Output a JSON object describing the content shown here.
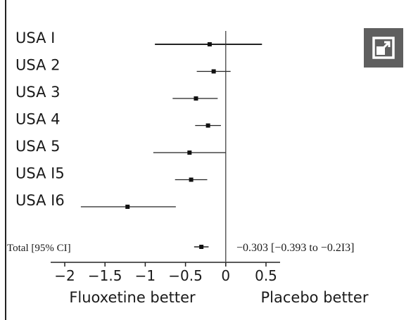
{
  "chart_data": {
    "type": "forest",
    "title": "",
    "xlabel_left": "Fluoxetine better",
    "xlabel_right": "Placebo better",
    "xlim": [
      -2,
      0.5
    ],
    "xticks": [
      -2,
      -1.5,
      -1,
      -0.5,
      0,
      0.5
    ],
    "xtick_labels": [
      "−2",
      "−1.5",
      "−1",
      "−0.5",
      "0",
      "0.5"
    ],
    "studies": [
      {
        "name": "USA I",
        "estimate": -0.2,
        "lower": -0.88,
        "upper": 0.45
      },
      {
        "name": "USA 2",
        "estimate": -0.15,
        "lower": -0.36,
        "upper": 0.06
      },
      {
        "name": "USA 3",
        "estimate": -0.37,
        "lower": -0.66,
        "upper": -0.1
      },
      {
        "name": "USA 4",
        "estimate": -0.22,
        "lower": -0.38,
        "upper": -0.06
      },
      {
        "name": "USA 5",
        "estimate": -0.45,
        "lower": -0.9,
        "upper": 0.0
      },
      {
        "name": "USA I5",
        "estimate": -0.43,
        "lower": -0.63,
        "upper": -0.23
      },
      {
        "name": "USA I6",
        "estimate": -1.22,
        "lower": -1.8,
        "upper": -0.62
      }
    ],
    "total": {
      "label": "Total [95% CI]",
      "estimate": -0.303,
      "lower": -0.393,
      "upper": -0.213,
      "text": "−0.303 [−0.393 to −0.2I3]"
    }
  },
  "ui": {
    "expand_icon": "expand-icon"
  }
}
